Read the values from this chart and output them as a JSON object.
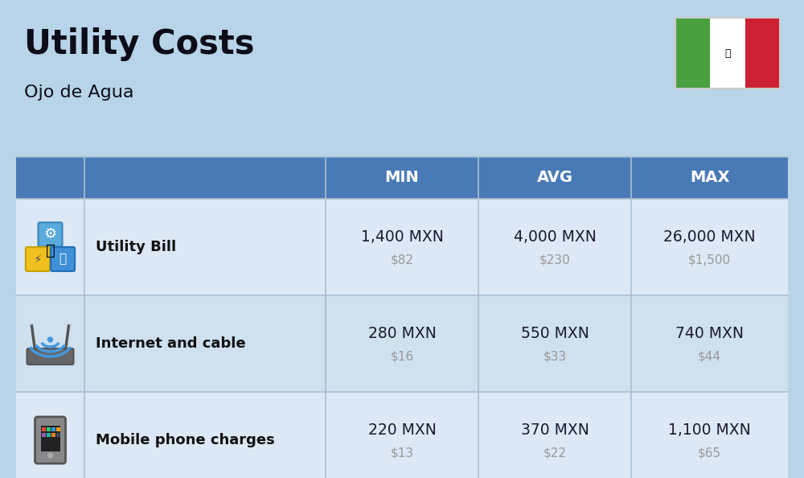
{
  "title": "Utility Costs",
  "subtitle": "Ojo de Agua",
  "background_color": "#b8d4e8",
  "header_color": "#4a7ab5",
  "header_text_color": "#ffffff",
  "row_color_1": "#dce8f5",
  "row_color_2": "#cfe0ef",
  "header_labels": [
    "MIN",
    "AVG",
    "MAX"
  ],
  "rows": [
    {
      "label": "Utility Bill",
      "min_mxn": "1,400 MXN",
      "min_usd": "$82",
      "avg_mxn": "4,000 MXN",
      "avg_usd": "$230",
      "max_mxn": "26,000 MXN",
      "max_usd": "$1,500"
    },
    {
      "label": "Internet and cable",
      "min_mxn": "280 MXN",
      "min_usd": "$16",
      "avg_mxn": "550 MXN",
      "avg_usd": "$33",
      "max_mxn": "740 MXN",
      "max_usd": "$44"
    },
    {
      "label": "Mobile phone charges",
      "min_mxn": "220 MXN",
      "min_usd": "$13",
      "avg_mxn": "370 MXN",
      "avg_usd": "$22",
      "max_mxn": "1,100 MXN",
      "max_usd": "$65"
    }
  ],
  "mxn_color": "#1a1a2e",
  "usd_color": "#999999",
  "label_color": "#111111",
  "divider_color": "#aabfd4",
  "flag_green": "#4a9f3f",
  "flag_white": "#ffffff",
  "flag_red": "#cc2033"
}
